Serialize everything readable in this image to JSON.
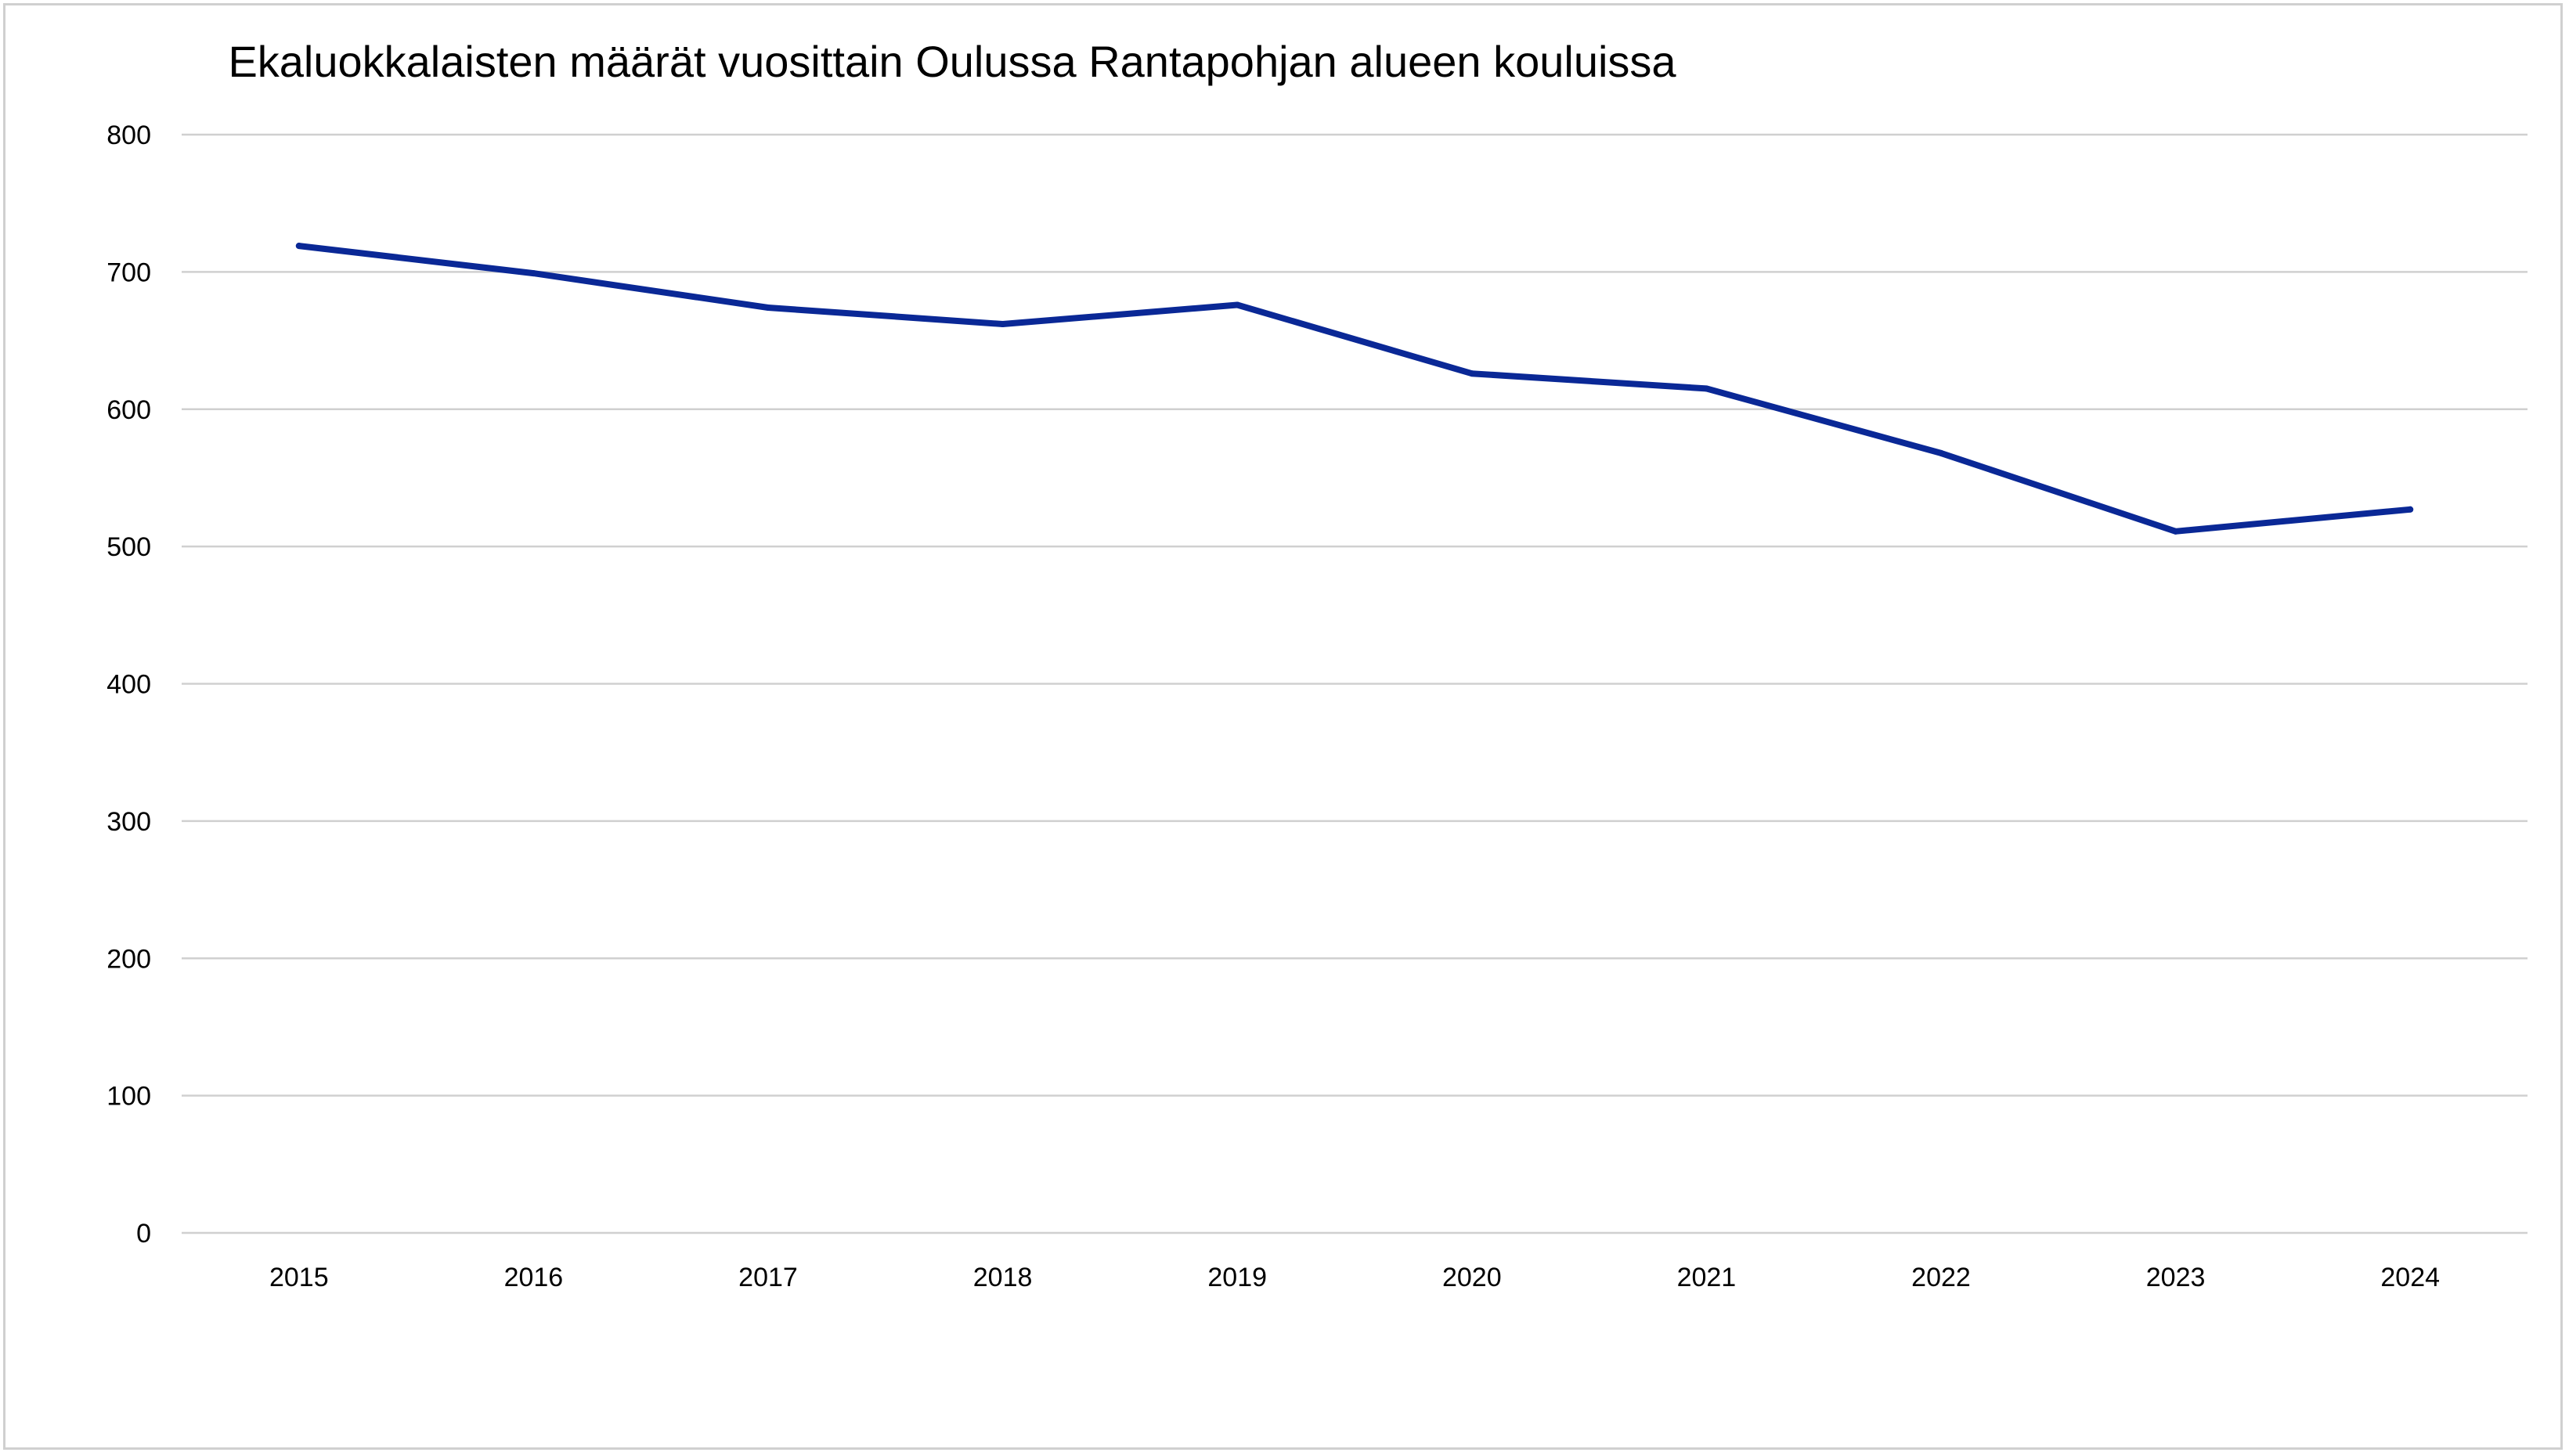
{
  "chart_data": {
    "type": "line",
    "title": "Ekaluokkalaisten määrät vuosittain Oulussa Rantapohjan alueen kouluissa",
    "xlabel": "",
    "ylabel": "",
    "categories": [
      "2015",
      "2016",
      "2017",
      "2018",
      "2019",
      "2020",
      "2021",
      "2022",
      "2023",
      "2024"
    ],
    "series": [
      {
        "values": [
          719,
          699,
          674,
          662,
          676,
          626,
          615,
          568,
          511,
          527
        ]
      }
    ],
    "ylim": [
      0,
      800
    ],
    "yticks": [
      0,
      100,
      200,
      300,
      400,
      500,
      600,
      700,
      800
    ],
    "grid": true,
    "legend": "none",
    "colors": {
      "series": "#0a2896",
      "grid": "#d0d0d0",
      "border": "#d0d0d0"
    }
  }
}
